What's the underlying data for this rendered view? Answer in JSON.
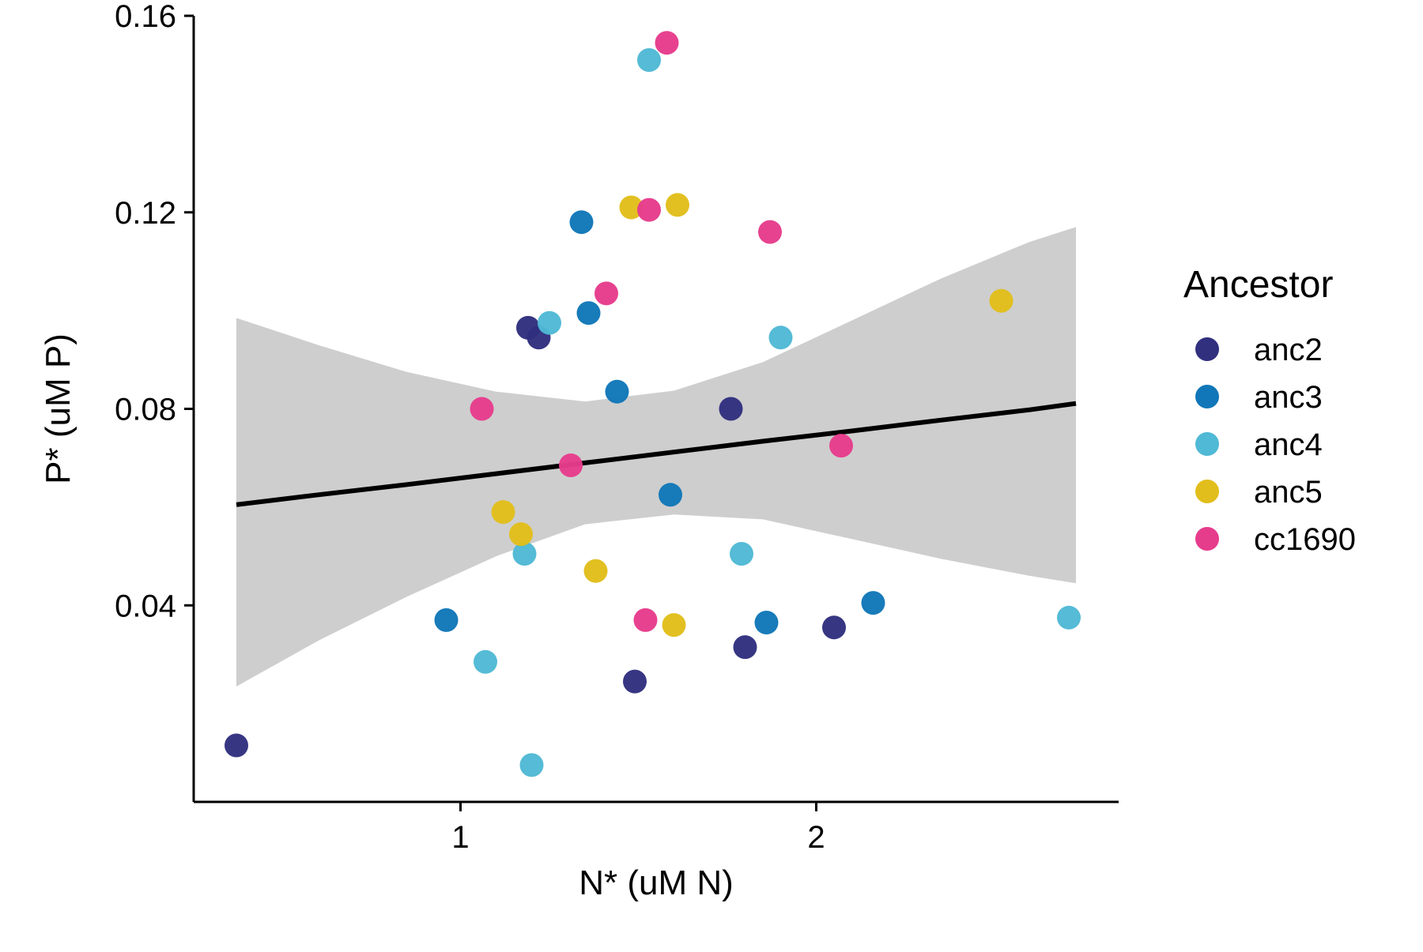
{
  "chart_data": {
    "type": "scatter",
    "xlabel": "N* (uM N)",
    "ylabel": "P* (uM P)",
    "xlim": [
      0.25,
      2.85
    ],
    "ylim": [
      0.0,
      0.16
    ],
    "x_ticks": [
      1,
      2
    ],
    "x_tick_labels": [
      "1",
      "2"
    ],
    "y_ticks": [
      0.04,
      0.08,
      0.12,
      0.16
    ],
    "y_tick_labels": [
      "0.04",
      "0.08",
      "0.12",
      "0.16"
    ],
    "grid": false,
    "legend": {
      "title": "Ancestor",
      "placement": "right"
    },
    "series": [
      {
        "name": "anc2",
        "color": "#31307F",
        "points": [
          {
            "x": 0.37,
            "y": 0.0115
          },
          {
            "x": 1.19,
            "y": 0.0965
          },
          {
            "x": 1.22,
            "y": 0.0945
          },
          {
            "x": 1.49,
            "y": 0.0245
          },
          {
            "x": 1.76,
            "y": 0.08
          },
          {
            "x": 1.8,
            "y": 0.0315
          },
          {
            "x": 2.05,
            "y": 0.0355
          }
        ]
      },
      {
        "name": "anc3",
        "color": "#1177B8",
        "points": [
          {
            "x": 0.96,
            "y": 0.037
          },
          {
            "x": 1.34,
            "y": 0.118
          },
          {
            "x": 1.36,
            "y": 0.0995
          },
          {
            "x": 1.44,
            "y": 0.0835
          },
          {
            "x": 1.59,
            "y": 0.0625
          },
          {
            "x": 1.86,
            "y": 0.0365
          },
          {
            "x": 2.16,
            "y": 0.0405
          }
        ]
      },
      {
        "name": "anc4",
        "color": "#50B9D5",
        "points": [
          {
            "x": 1.07,
            "y": 0.0285
          },
          {
            "x": 1.18,
            "y": 0.0505
          },
          {
            "x": 1.2,
            "y": 0.0075
          },
          {
            "x": 1.25,
            "y": 0.0975
          },
          {
            "x": 1.53,
            "y": 0.151
          },
          {
            "x": 1.79,
            "y": 0.0505
          },
          {
            "x": 1.9,
            "y": 0.0945
          },
          {
            "x": 2.71,
            "y": 0.0375
          }
        ]
      },
      {
        "name": "anc5",
        "color": "#E1BE1B",
        "points": [
          {
            "x": 1.12,
            "y": 0.059
          },
          {
            "x": 1.17,
            "y": 0.0545
          },
          {
            "x": 1.38,
            "y": 0.047
          },
          {
            "x": 1.48,
            "y": 0.121
          },
          {
            "x": 1.6,
            "y": 0.036
          },
          {
            "x": 1.61,
            "y": 0.1215
          },
          {
            "x": 2.52,
            "y": 0.102
          }
        ]
      },
      {
        "name": "cc1690",
        "color": "#E63C8C",
        "points": [
          {
            "x": 1.06,
            "y": 0.08
          },
          {
            "x": 1.31,
            "y": 0.0685
          },
          {
            "x": 1.41,
            "y": 0.1035
          },
          {
            "x": 1.52,
            "y": 0.037
          },
          {
            "x": 1.53,
            "y": 0.1205
          },
          {
            "x": 1.58,
            "y": 0.1545
          },
          {
            "x": 1.87,
            "y": 0.116
          },
          {
            "x": 2.07,
            "y": 0.0725
          }
        ]
      }
    ],
    "trend": {
      "color": "#000000",
      "band_color": "#BEBEBE",
      "x": [
        0.37,
        0.6,
        0.85,
        1.1,
        1.35,
        1.6,
        1.85,
        2.1,
        2.35,
        2.6,
        2.73
      ],
      "fit": [
        0.0605,
        0.0625,
        0.0646,
        0.0668,
        0.069,
        0.0712,
        0.0734,
        0.0755,
        0.0777,
        0.0798,
        0.0811
      ],
      "lower": [
        0.0235,
        0.0328,
        0.0418,
        0.05,
        0.0565,
        0.0585,
        0.0575,
        0.0535,
        0.0495,
        0.046,
        0.0445
      ],
      "upper": [
        0.0985,
        0.093,
        0.0875,
        0.0835,
        0.0815,
        0.0837,
        0.0895,
        0.098,
        0.1065,
        0.114,
        0.117
      ]
    }
  }
}
